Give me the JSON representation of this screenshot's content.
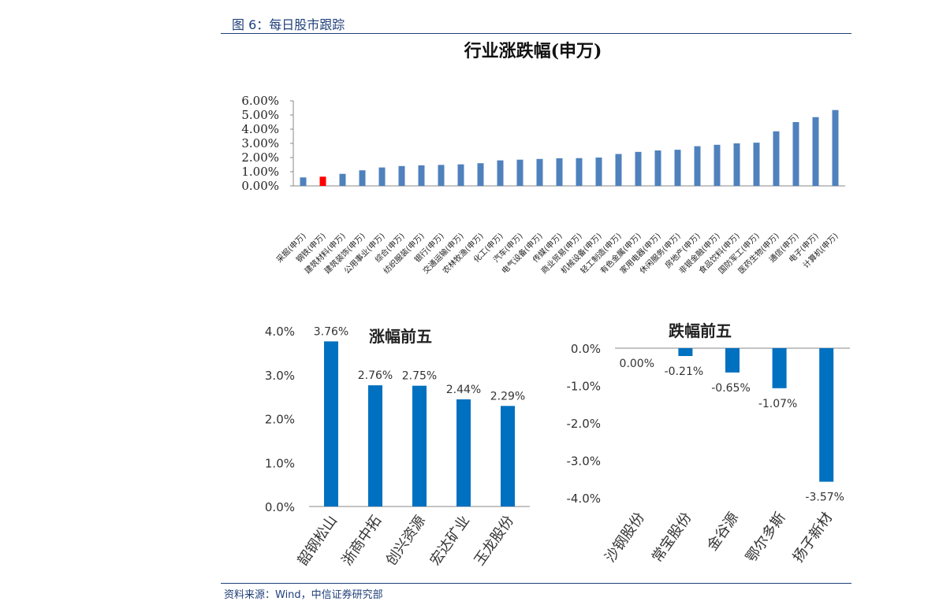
{
  "page": {
    "header": "图 6：每日股市跟踪",
    "source": "资料来源：Wind，中信证券研究部"
  },
  "chart_data": [
    {
      "type": "bar",
      "title": "行业涨跌幅(申万)",
      "categories": [
        "采掘(申万)",
        "钢铁(申万)",
        "建筑材料(申万)",
        "建筑装饰(申万)",
        "公用事业(申万)",
        "综合(申万)",
        "纺织服装(申万)",
        "银行(申万)",
        "交通运输(申万)",
        "农林牧渔(申万)",
        "化工(申万)",
        "汽车(申万)",
        "电气设备(申万)",
        "传媒(申万)",
        "商业贸易(申万)",
        "机械设备(申万)",
        "轻工制造(申万)",
        "有色金属(申万)",
        "家用电器(申万)",
        "休闲服务(申万)",
        "房地产(申万)",
        "非银金融(申万)",
        "食品饮料(申万)",
        "国防军工(申万)",
        "医药生物(申万)",
        "通信(申万)",
        "电子(申万)",
        "计算机(申万)"
      ],
      "values": [
        0.6,
        0.65,
        0.85,
        1.1,
        1.3,
        1.4,
        1.45,
        1.48,
        1.52,
        1.6,
        1.8,
        1.85,
        1.9,
        1.95,
        1.96,
        2.0,
        2.25,
        2.4,
        2.5,
        2.55,
        2.8,
        2.9,
        3.0,
        3.05,
        3.85,
        4.5,
        4.85,
        5.35
      ],
      "highlight_index": 1,
      "ylim": [
        0,
        6
      ],
      "yticks": [
        "0.00%",
        "1.00%",
        "2.00%",
        "3.00%",
        "4.00%",
        "5.00%",
        "6.00%"
      ],
      "colors": {
        "bar": "#4f81bd",
        "highlight": "#ff0000"
      }
    },
    {
      "type": "bar",
      "title": "涨幅前五",
      "categories": [
        "韶钢松山",
        "浙商中拓",
        "创兴资源",
        "宏达矿业",
        "玉龙股份"
      ],
      "values": [
        3.76,
        2.76,
        2.75,
        2.44,
        2.29
      ],
      "data_labels": [
        "3.76%",
        "2.76%",
        "2.75%",
        "2.44%",
        "2.29%"
      ],
      "ylim": [
        0,
        4
      ],
      "yticks": [
        "0.0%",
        "1.0%",
        "2.0%",
        "3.0%",
        "4.0%"
      ],
      "colors": {
        "bar": "#0070c0"
      }
    },
    {
      "type": "bar",
      "title": "跌幅前五",
      "categories": [
        "沙钢股份",
        "常宝股份",
        "金谷源",
        "鄂尔多斯",
        "扬子新材"
      ],
      "values": [
        0.0,
        -0.21,
        -0.65,
        -1.07,
        -3.57
      ],
      "data_labels": [
        "0.00%",
        "-0.21%",
        "-0.65%",
        "-1.07%",
        "-3.57%"
      ],
      "ylim": [
        -4,
        0
      ],
      "yticks": [
        "0.0%",
        "-1.0%",
        "-2.0%",
        "-3.0%",
        "-4.0%"
      ],
      "colors": {
        "bar": "#0070c0"
      }
    }
  ]
}
